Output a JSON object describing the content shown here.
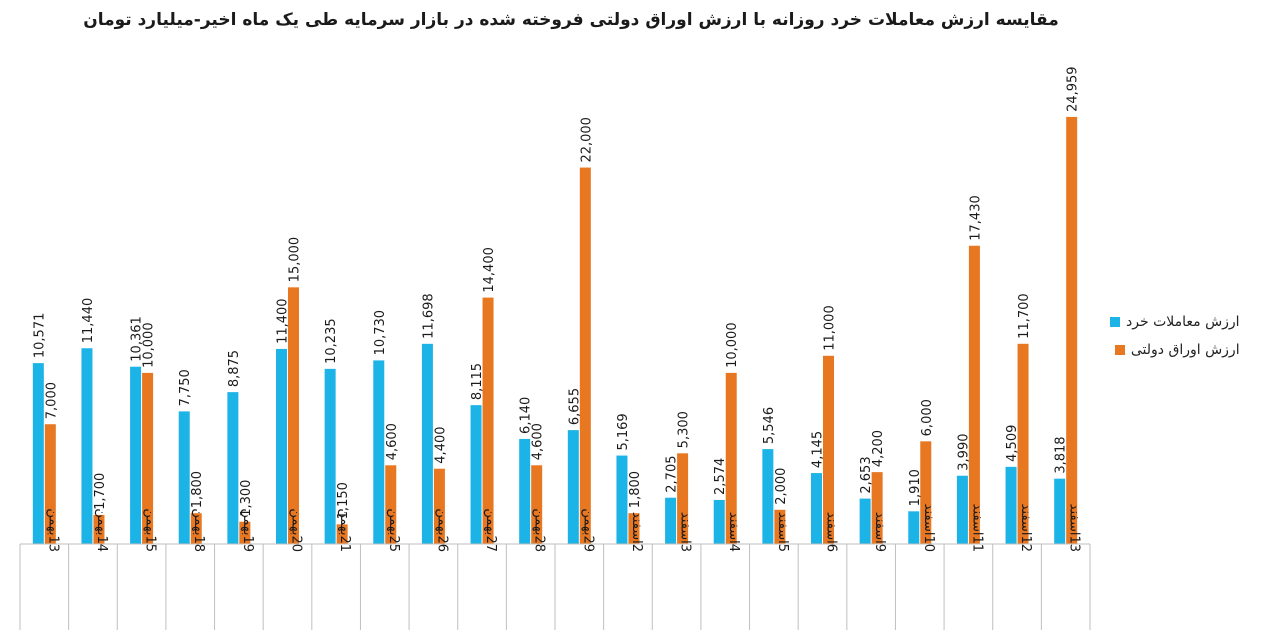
{
  "colors": {
    "retail": "#1cb4e6",
    "bonds": "#e87722",
    "axis": "#bfbfbf"
  },
  "chart_data": {
    "type": "bar",
    "title": "مقایسه ارزش معاملات خرد روزانه با ارزش اوراق دولتی فروخته شده در بازار سرمایه طی یک ماه اخیر-میلیارد تومان",
    "categories": [
      "13بهمن",
      "14بهمن",
      "15بهمن",
      "18بهمن",
      "19بهمن",
      "20بهمن",
      "21بهمن",
      "25بهمن",
      "26بهمن",
      "27بهمن",
      "28بهمن",
      "29بهمن",
      "2اسفند",
      "3اسفند",
      "4اسفند",
      "5اسفند",
      "6اسفند",
      "9اسفند",
      "10اسفند",
      "11اسفند",
      "12اسفند",
      "13اسفند"
    ],
    "series": [
      {
        "name": "ارزش معاملات خرد",
        "color": "#1cb4e6",
        "values": [
          10571,
          11440,
          10361,
          7750,
          8875,
          11400,
          10235,
          10730,
          11698,
          8115,
          6140,
          6655,
          5169,
          2705,
          2574,
          5546,
          4145,
          2653,
          1910,
          3990,
          4509,
          3818
        ],
        "labels": [
          "10,571",
          "11,440",
          "10,361",
          "7,750",
          "8,875",
          "11,400",
          "10,235",
          "10,730",
          "11,698",
          "8,115",
          "6,140",
          "6,655",
          "5,169",
          "2,705",
          "2,574",
          "5,546",
          "4,145",
          "2,653",
          "1,910",
          "3,990",
          "4,509",
          "3,818"
        ]
      },
      {
        "name": "ارزش اوراق دولتی",
        "color": "#e87722",
        "values": [
          7000,
          1700,
          10000,
          1800,
          1300,
          15000,
          1150,
          4600,
          4400,
          14400,
          4600,
          22000,
          1800,
          5300,
          10000,
          2000,
          11000,
          4200,
          6000,
          17430,
          11700,
          24959
        ],
        "labels": [
          "7,000",
          "1,700",
          "10,000",
          "1,800",
          "1,300",
          "15,000",
          "1,150",
          "4,600",
          "4,400",
          "14,400",
          "4,600",
          "22,000",
          "1,800",
          "5,300",
          "10,000",
          "2,000",
          "11,000",
          "4,200",
          "6,000",
          "17,430",
          "11,700",
          "24,959"
        ]
      }
    ],
    "ylim": [
      0,
      27000
    ],
    "grid": false,
    "legend_position": "right"
  }
}
